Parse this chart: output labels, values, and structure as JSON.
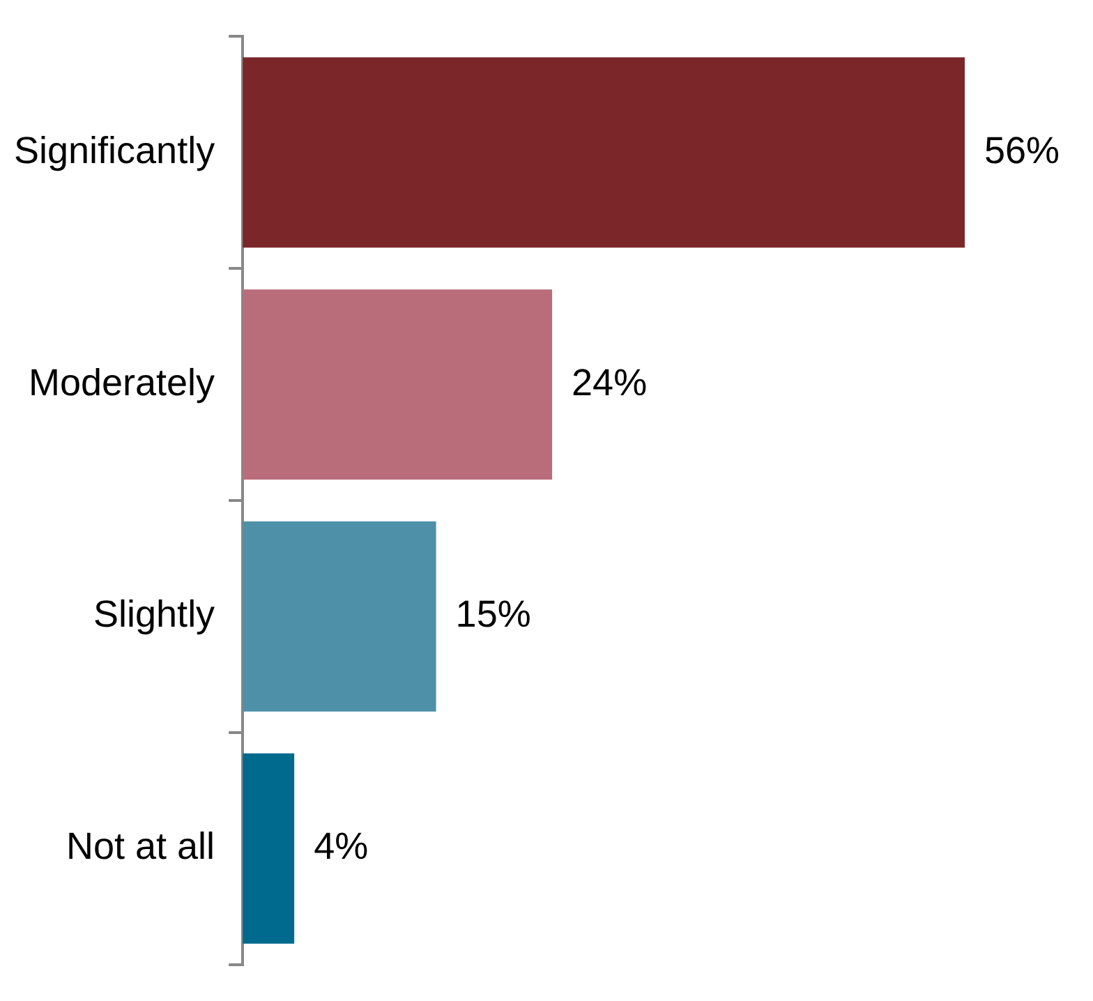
{
  "chart_data": {
    "type": "bar",
    "orientation": "horizontal",
    "categories": [
      "Significantly",
      "Moderately",
      "Slightly",
      "Not at all"
    ],
    "values": [
      56,
      24,
      15,
      4
    ],
    "colors": [
      "#7b2629",
      "#b96d7b",
      "#4e90a8",
      "#006a8e"
    ],
    "value_labels": [
      "56%",
      "24%",
      "15%",
      "4%"
    ]
  }
}
